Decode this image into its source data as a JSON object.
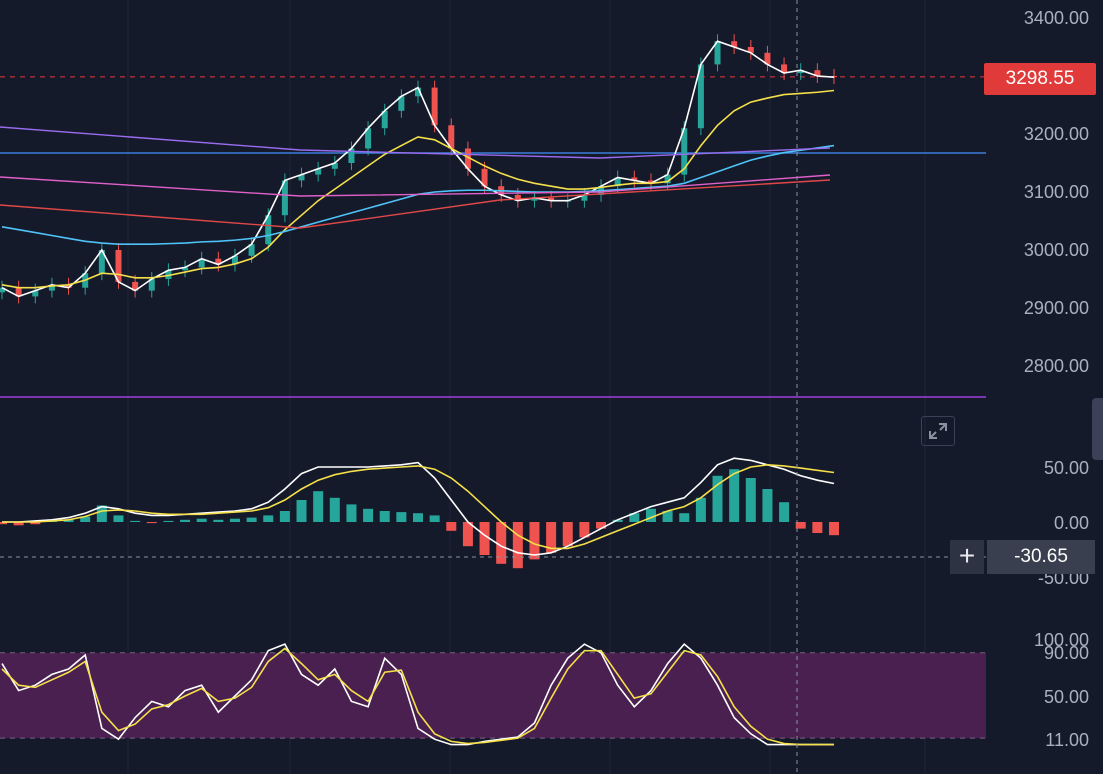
{
  "price_axis": {
    "labels": [
      "3400.00",
      "3200.00",
      "3100.00",
      "3000.00",
      "2900.00",
      "2800.00"
    ],
    "current_price": "3298.55"
  },
  "macd_axis": {
    "labels": [
      "50.00",
      "0.00",
      "-50.00"
    ],
    "cursor_value": "-30.65"
  },
  "stoch_axis": {
    "labels": [
      "100.00",
      "90.00",
      "50.00",
      "11.00"
    ]
  },
  "controls": {
    "expand_icon": "expand-arrows-icon",
    "crosshair_icon": "plus-icon"
  },
  "colors": {
    "background": "#151a2b",
    "up_candle": "#26a69a",
    "down_candle": "#ef5350",
    "last_price": "#e03a3a",
    "ma_fast": "#ffffff",
    "ma_mid": "#f5e04a",
    "ma_slow": "#4fc3f7",
    "stoch_band": "#4a2050"
  },
  "chart_data": [
    {
      "type": "line",
      "name": "price",
      "ylim": [
        2760,
        3420
      ],
      "x": [
        0,
        4,
        8,
        12,
        16,
        20,
        24,
        28,
        32,
        36,
        40,
        44,
        48,
        52,
        56,
        60,
        64,
        68,
        72,
        76,
        80,
        84,
        88,
        92,
        96,
        100,
        104,
        108,
        112,
        116,
        120,
        124,
        128,
        132,
        136,
        140,
        144,
        148,
        152,
        156,
        160,
        164,
        168,
        172,
        176,
        180,
        184,
        188,
        192,
        196,
        200
      ],
      "series": [
        {
          "values": [
            2935,
            2920,
            2930,
            2940,
            2935,
            2960,
            3000,
            2945,
            2930,
            2950,
            2965,
            2970,
            2985,
            2975,
            2990,
            3010,
            3060,
            3120,
            3130,
            3140,
            3150,
            3175,
            3210,
            3240,
            3265,
            3280,
            3215,
            3175,
            3140,
            3110,
            3095,
            3085,
            3090,
            3085,
            3085,
            3095,
            3110,
            3125,
            3120,
            3115,
            3130,
            3210,
            3320,
            3360,
            3350,
            3340,
            3320,
            3305,
            3310,
            3300,
            3298
          ]
        },
        {
          "values": [
            2940,
            2935,
            2935,
            2938,
            2940,
            2948,
            2960,
            2958,
            2952,
            2952,
            2956,
            2962,
            2968,
            2970,
            2976,
            2985,
            3005,
            3035,
            3060,
            3085,
            3105,
            3125,
            3145,
            3165,
            3180,
            3195,
            3190,
            3175,
            3160,
            3145,
            3132,
            3122,
            3115,
            3110,
            3105,
            3105,
            3108,
            3112,
            3115,
            3115,
            3118,
            3140,
            3180,
            3215,
            3240,
            3255,
            3262,
            3268,
            3270,
            3272,
            3275
          ]
        },
        {
          "values": [
            3040,
            3035,
            3030,
            3025,
            3020,
            3015,
            3012,
            3010,
            3010,
            3010,
            3011,
            3012,
            3014,
            3015,
            3017,
            3020,
            3025,
            3032,
            3040,
            3048,
            3056,
            3064,
            3072,
            3080,
            3088,
            3096,
            3100,
            3102,
            3103,
            3103,
            3102,
            3101,
            3100,
            3100,
            3100,
            3101,
            3102,
            3104,
            3106,
            3108,
            3110,
            3115,
            3125,
            3135,
            3145,
            3155,
            3162,
            3168,
            3172,
            3176,
            3180
          ]
        }
      ]
    },
    {
      "type": "bar",
      "name": "macd",
      "ylim": [
        -70,
        75
      ],
      "x": [
        0,
        4,
        8,
        12,
        16,
        20,
        24,
        28,
        32,
        36,
        40,
        44,
        48,
        52,
        56,
        60,
        64,
        68,
        72,
        76,
        80,
        84,
        88,
        92,
        96,
        100,
        104,
        108,
        112,
        116,
        120,
        124,
        128,
        132,
        136,
        140,
        144,
        148,
        152,
        156,
        160,
        164,
        168,
        172,
        176,
        180,
        184,
        188,
        192,
        196,
        200
      ],
      "values": [
        -2,
        -3,
        -2,
        1,
        2,
        5,
        15,
        6,
        1,
        -1,
        1,
        2,
        3,
        2,
        3,
        4,
        6,
        10,
        20,
        28,
        22,
        16,
        12,
        10,
        9,
        8,
        6,
        -8,
        -22,
        -30,
        -38,
        -42,
        -34,
        -28,
        -22,
        -14,
        -6,
        2,
        8,
        12,
        10,
        8,
        22,
        42,
        48,
        40,
        30,
        18,
        -6,
        -10,
        -12
      ],
      "lines": [
        {
          "values": [
            0,
            0,
            1,
            2,
            4,
            8,
            14,
            12,
            8,
            6,
            6,
            7,
            8,
            9,
            10,
            12,
            18,
            30,
            44,
            50,
            50,
            50,
            50,
            51,
            52,
            54,
            40,
            20,
            0,
            -12,
            -22,
            -28,
            -30,
            -28,
            -22,
            -14,
            -6,
            2,
            8,
            14,
            18,
            22,
            36,
            52,
            58,
            56,
            52,
            48,
            42,
            38,
            35
          ]
        },
        {
          "values": [
            0,
            0,
            0,
            1,
            2,
            5,
            10,
            11,
            10,
            8,
            7,
            7,
            7,
            8,
            9,
            10,
            13,
            20,
            30,
            38,
            43,
            46,
            48,
            49,
            50,
            51,
            48,
            40,
            28,
            14,
            0,
            -12,
            -20,
            -24,
            -24,
            -20,
            -14,
            -8,
            -2,
            4,
            10,
            14,
            22,
            34,
            44,
            50,
            52,
            51,
            49,
            47,
            45
          ]
        }
      ]
    },
    {
      "type": "line",
      "name": "stochastic",
      "ylim": [
        0,
        100
      ],
      "x": [
        0,
        4,
        8,
        12,
        16,
        20,
        24,
        28,
        32,
        36,
        40,
        44,
        48,
        52,
        56,
        60,
        64,
        68,
        72,
        76,
        80,
        84,
        88,
        92,
        96,
        100,
        104,
        108,
        112,
        116,
        120,
        124,
        128,
        132,
        136,
        140,
        144,
        148,
        152,
        156,
        160,
        164,
        168,
        172,
        176,
        180,
        184,
        188,
        192,
        196,
        200
      ],
      "series": [
        {
          "values": [
            80,
            55,
            60,
            70,
            75,
            88,
            20,
            10,
            30,
            45,
            40,
            55,
            60,
            35,
            50,
            65,
            92,
            98,
            70,
            60,
            75,
            45,
            40,
            85,
            70,
            20,
            10,
            5,
            5,
            8,
            10,
            12,
            25,
            60,
            85,
            98,
            90,
            60,
            40,
            55,
            80,
            98,
            85,
            60,
            30,
            15,
            5,
            5,
            5,
            5,
            5
          ]
        },
        {
          "values": [
            75,
            60,
            58,
            65,
            72,
            82,
            35,
            18,
            24,
            38,
            42,
            50,
            57,
            45,
            48,
            58,
            82,
            94,
            80,
            65,
            70,
            55,
            45,
            72,
            74,
            35,
            15,
            8,
            6,
            7,
            9,
            11,
            20,
            48,
            75,
            92,
            92,
            70,
            48,
            52,
            72,
            92,
            88,
            68,
            40,
            22,
            10,
            6,
            5,
            5,
            5
          ]
        }
      ]
    }
  ]
}
